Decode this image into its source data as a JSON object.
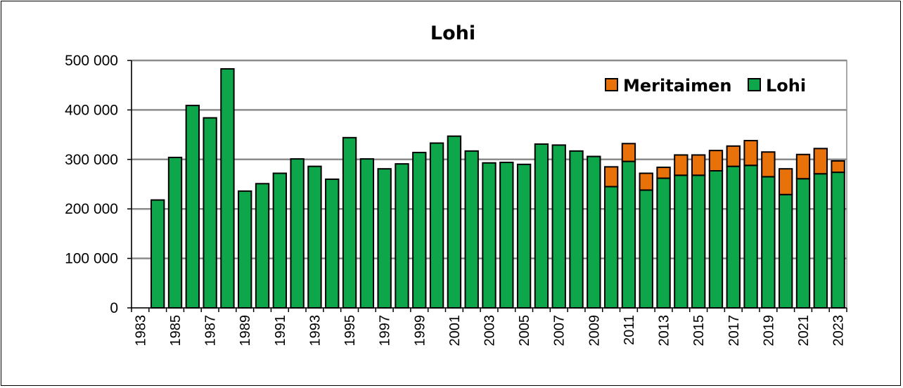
{
  "chart_data": {
    "type": "bar",
    "stacked": true,
    "title": "Lohi",
    "xlabel": "",
    "ylabel": "",
    "ylim": [
      0,
      500000
    ],
    "yticks": [
      0,
      100000,
      200000,
      300000,
      400000,
      500000
    ],
    "ytick_labels": [
      "0",
      "100 000",
      "200 000",
      "300 000",
      "400 000",
      "500 000"
    ],
    "grid": true,
    "legend_position": "top-right",
    "categories": [
      "1983",
      "1984",
      "1985",
      "1986",
      "1987",
      "1988",
      "1989",
      "1990",
      "1991",
      "1992",
      "1993",
      "1994",
      "1995",
      "1996",
      "1997",
      "1998",
      "1999",
      "2000",
      "2001",
      "2002",
      "2003",
      "2004",
      "2005",
      "2006",
      "2007",
      "2008",
      "2009",
      "2010",
      "2011",
      "2012",
      "2013",
      "2014",
      "2015",
      "2016",
      "2017",
      "2018",
      "2019",
      "2020",
      "2021",
      "2022",
      "2023"
    ],
    "xtick_labels": [
      "1983",
      "1985",
      "1987",
      "1989",
      "1991",
      "1993",
      "1995",
      "1997",
      "1999",
      "2001",
      "2003",
      "2005",
      "2007",
      "2009",
      "2011",
      "2013",
      "2015",
      "2017",
      "2019",
      "2021",
      "2023"
    ],
    "series": [
      {
        "name": "Lohi",
        "color": "#0DA64A",
        "values": [
          0,
          218000,
          304000,
          409000,
          384000,
          483000,
          236000,
          251000,
          272000,
          301000,
          286000,
          260000,
          344000,
          301000,
          281000,
          291000,
          314000,
          333000,
          347000,
          317000,
          293000,
          294000,
          290000,
          331000,
          329000,
          317000,
          306000,
          245000,
          296000,
          238000,
          262000,
          268000,
          268000,
          277000,
          286000,
          288000,
          265000,
          229000,
          261000,
          271000,
          274000
        ]
      },
      {
        "name": "Meritaimen",
        "color": "#E8710A",
        "values": [
          0,
          0,
          0,
          0,
          0,
          0,
          0,
          0,
          0,
          0,
          0,
          0,
          0,
          0,
          0,
          0,
          0,
          0,
          0,
          0,
          0,
          0,
          0,
          0,
          0,
          0,
          0,
          40000,
          36000,
          34000,
          22000,
          41000,
          41000,
          41000,
          41000,
          50000,
          50000,
          52000,
          49000,
          51000,
          23000
        ]
      }
    ],
    "legend_order": [
      "Meritaimen",
      "Lohi"
    ]
  }
}
